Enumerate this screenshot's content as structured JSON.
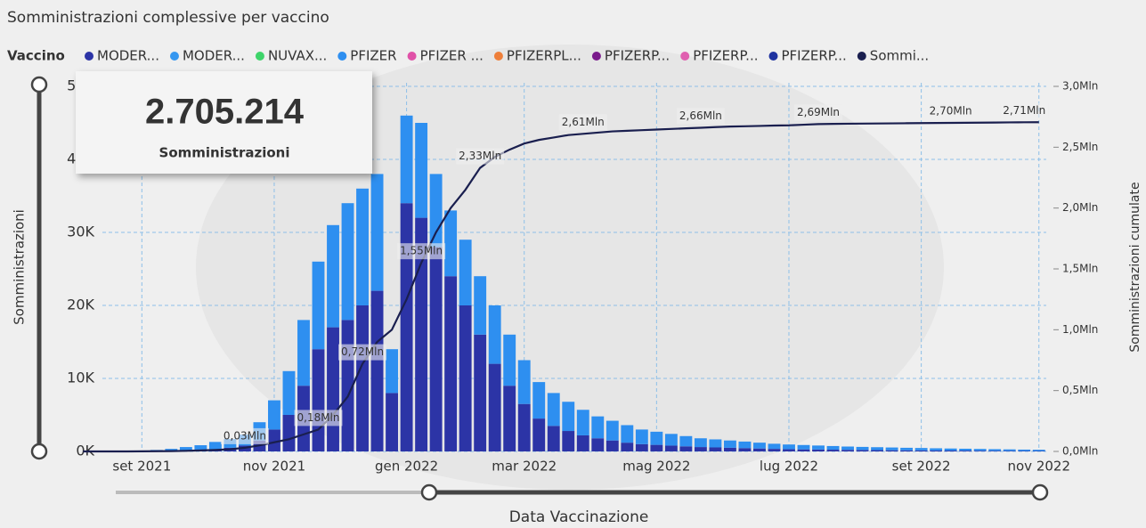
{
  "chart_data": {
    "type": "bar",
    "title": "Somministrazioni complessive per vaccino",
    "kpi": {
      "value": "2.705.214",
      "label": "Somministrazioni"
    },
    "legend_title": "Vaccino",
    "y_label": "Somministrazioni",
    "y2_label": "Somministrazioni cumulate",
    "x_label": "Data Vaccinazione",
    "stacked": true,
    "grid": true,
    "categories": [
      null,
      null,
      null,
      null,
      "set 2021",
      null,
      null,
      null,
      null,
      null,
      null,
      null,
      null,
      "nov 2021",
      null,
      null,
      null,
      null,
      null,
      null,
      null,
      null,
      "gen 2022",
      null,
      null,
      null,
      null,
      null,
      null,
      null,
      "mar 2022",
      null,
      null,
      null,
      null,
      null,
      null,
      null,
      null,
      "mag 2022",
      null,
      null,
      null,
      null,
      null,
      null,
      null,
      null,
      "lug 2022",
      null,
      null,
      null,
      null,
      null,
      null,
      null,
      null,
      "set 2022",
      null,
      null,
      null,
      null,
      null,
      null,
      null,
      "nov 2022"
    ],
    "ylim": [
      0,
      50000
    ],
    "yticks": [
      {
        "value": 0,
        "label": "0K"
      },
      {
        "value": 10000,
        "label": "10K"
      },
      {
        "value": 20000,
        "label": "20K"
      },
      {
        "value": 30000,
        "label": "30K"
      },
      {
        "value": 40000,
        "label": "40K"
      },
      {
        "value": 50000,
        "label": "50K"
      }
    ],
    "y2lim": [
      0,
      3000000
    ],
    "y2ticks": [
      {
        "value": 0,
        "label": "0,0Mln"
      },
      {
        "value": 500000,
        "label": "0,5Mln"
      },
      {
        "value": 1000000,
        "label": "1,0Mln"
      },
      {
        "value": 1500000,
        "label": "1,5Mln"
      },
      {
        "value": 2000000,
        "label": "2,0Mln"
      },
      {
        "value": 2500000,
        "label": "2,5Mln"
      },
      {
        "value": 3000000,
        "label": "3,0Mln"
      }
    ],
    "series": [
      {
        "name": "MODER...",
        "color": "#2c34a6",
        "values": [
          0,
          0,
          0,
          0,
          0,
          0,
          50,
          100,
          150,
          300,
          500,
          800,
          1500,
          3000,
          5000,
          9000,
          14000,
          17000,
          18000,
          20000,
          22000,
          8000,
          34000,
          32000,
          28000,
          24000,
          20000,
          16000,
          12000,
          9000,
          6500,
          4500,
          3500,
          2800,
          2200,
          1800,
          1500,
          1200,
          1000,
          900,
          800,
          700,
          600,
          550,
          500,
          450,
          400,
          350,
          300,
          280,
          260,
          240,
          220,
          200,
          180,
          160,
          150,
          140,
          130,
          120,
          110,
          100,
          90,
          80,
          70,
          60
        ]
      },
      {
        "name": "MODER...",
        "color": "#3597f0"
      },
      {
        "name": "NUVAX...",
        "color": "#3ed46a"
      },
      {
        "name": "PFIZER",
        "color": "#2e8ff0",
        "values": [
          0,
          0,
          0,
          50,
          100,
          200,
          300,
          500,
          700,
          1000,
          1200,
          1500,
          2500,
          4000,
          6000,
          9000,
          12000,
          14000,
          16000,
          16000,
          16000,
          6000,
          12000,
          13000,
          10000,
          9000,
          9000,
          8000,
          8000,
          7000,
          6000,
          5000,
          4500,
          4000,
          3500,
          3000,
          2700,
          2400,
          2000,
          1800,
          1600,
          1400,
          1200,
          1100,
          1000,
          900,
          800,
          700,
          650,
          600,
          550,
          500,
          450,
          420,
          400,
          380,
          350,
          330,
          300,
          280,
          260,
          240,
          220,
          200,
          180,
          170
        ]
      },
      {
        "name": "PFIZER ...",
        "color": "#e052a8"
      },
      {
        "name": "PFIZERPL...",
        "color": "#ee7f3a"
      },
      {
        "name": "PFIZERP...",
        "color": "#7a1a8c"
      },
      {
        "name": "PFIZERP...",
        "color": "#e060b0"
      },
      {
        "name": "PFIZERP...",
        "color": "#1f33a0"
      },
      {
        "name": "Sommi...",
        "color": "#1a1f4f",
        "type": "line",
        "axis": "y2",
        "values": [
          0,
          0,
          0,
          0,
          1000,
          2000,
          3000,
          5000,
          8000,
          12000,
          18000,
          30000,
          50000,
          75000,
          100000,
          140000,
          180000,
          300000,
          450000,
          720000,
          900000,
          1000000,
          1250000,
          1550000,
          1800000,
          2000000,
          2150000,
          2330000,
          2420000,
          2480000,
          2530000,
          2560000,
          2580000,
          2600000,
          2610000,
          2620000,
          2630000,
          2635000,
          2640000,
          2645000,
          2650000,
          2655000,
          2660000,
          2665000,
          2670000,
          2672000,
          2675000,
          2678000,
          2680000,
          2685000,
          2690000,
          2692000,
          2693000,
          2694000,
          2695000,
          2696000,
          2697000,
          2698000,
          2699000,
          2700000,
          2701000,
          2702000,
          2703000,
          2704000,
          2705000,
          2705214
        ],
        "value_labels": [
          null,
          null,
          null,
          null,
          null,
          null,
          null,
          null,
          null,
          null,
          null,
          "0,03Mln",
          null,
          null,
          null,
          null,
          "0,18Mln",
          null,
          null,
          "0,72Mln",
          null,
          null,
          null,
          "1,55Mln",
          null,
          null,
          null,
          "2,33Mln",
          null,
          null,
          null,
          null,
          null,
          null,
          "2,61Mln",
          null,
          null,
          null,
          null,
          null,
          null,
          null,
          "2,66Mln",
          null,
          null,
          null,
          null,
          null,
          null,
          null,
          "2,69Mln",
          null,
          null,
          null,
          null,
          null,
          null,
          null,
          null,
          "2,70Mln",
          null,
          null,
          null,
          null,
          "2,71Mln",
          null
        ]
      }
    ]
  }
}
